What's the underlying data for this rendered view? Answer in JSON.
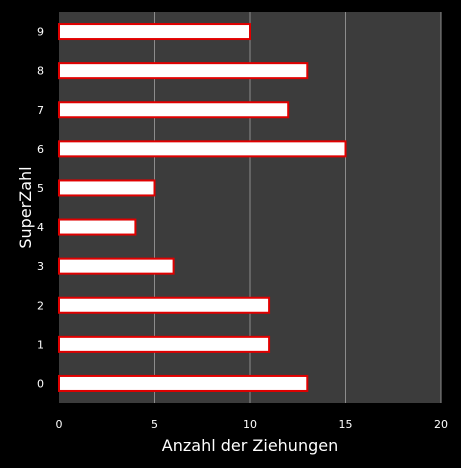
{
  "colors": {
    "background": "#000000",
    "plot_area": "#3c3c3c",
    "gridline": "#8c8c8c",
    "bar_fill": "#ffffff",
    "bar_border": "#e00000",
    "text": "#ffffff"
  },
  "chart_data": {
    "type": "bar",
    "orientation": "horizontal",
    "categories": [
      "0",
      "1",
      "2",
      "3",
      "4",
      "5",
      "6",
      "7",
      "8",
      "9"
    ],
    "values": [
      13,
      11,
      11,
      6,
      4,
      5,
      15,
      12,
      13,
      10
    ],
    "xlabel": "Anzahl der Ziehungen",
    "ylabel": "SuperZahl",
    "xlim": [
      0,
      20
    ],
    "xticks": [
      0,
      5,
      10,
      15,
      20
    ],
    "grid": "vertical",
    "legend": "none"
  }
}
